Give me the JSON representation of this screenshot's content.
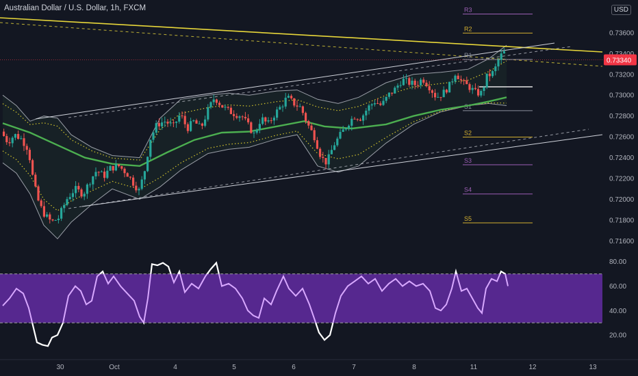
{
  "header": {
    "symbol_title": "Australian Dollar / U.S. Dollar, 1h, FXCM",
    "currency_badge": "USD"
  },
  "colors": {
    "background": "#131722",
    "up": "#26a69a",
    "down": "#ef5350",
    "ma": "#4caf50",
    "bands": "#b2b5be",
    "inner_bands": "#d4c52c",
    "trendline": "#e8d73a",
    "channel": "#d1d4dc",
    "rsi_line": "#d8a8ff",
    "rsi_fill": "#5e2a9b",
    "price_tag": "#f23645"
  },
  "chart_data": [
    {
      "type": "candlestick",
      "title": "",
      "ylim": [
        0.7155,
        0.7377
      ],
      "y_ticks": [
        "0.73600",
        "0.73400",
        "0.73200",
        "0.73000",
        "0.72800",
        "0.72600",
        "0.72400",
        "0.72200",
        "0.72000",
        "0.71800",
        "0.71600"
      ],
      "x_ticks": [
        "30",
        "Oct",
        "4",
        "5",
        "6",
        "7",
        "8",
        "11",
        "12",
        "13"
      ],
      "last_price": "0.73340",
      "grid": false,
      "pivot_levels": [
        {
          "label": "R3",
          "value": 0.7378
        },
        {
          "label": "R2",
          "value": 0.73597
        },
        {
          "label": "R1",
          "value": 0.73343
        },
        {
          "label": "S1",
          "value": 0.72851
        },
        {
          "label": "S2",
          "value": 0.72598
        },
        {
          "label": "S3",
          "value": 0.72332
        },
        {
          "label": "S4",
          "value": 0.72051
        },
        {
          "label": "S5",
          "value": 0.71773
        }
      ],
      "price_path": [
        {
          "x": 0,
          "y": 0.7265
        },
        {
          "x": 10,
          "y": 0.7255
        },
        {
          "x": 20,
          "y": 0.7262
        },
        {
          "x": 30,
          "y": 0.7258
        },
        {
          "x": 40,
          "y": 0.7248
        },
        {
          "x": 48,
          "y": 0.7215
        },
        {
          "x": 56,
          "y": 0.7195
        },
        {
          "x": 64,
          "y": 0.7185
        },
        {
          "x": 74,
          "y": 0.7178
        },
        {
          "x": 84,
          "y": 0.7182
        },
        {
          "x": 96,
          "y": 0.72
        },
        {
          "x": 108,
          "y": 0.721
        },
        {
          "x": 120,
          "y": 0.7205
        },
        {
          "x": 132,
          "y": 0.722
        },
        {
          "x": 140,
          "y": 0.7228
        },
        {
          "x": 150,
          "y": 0.7222
        },
        {
          "x": 160,
          "y": 0.723
        },
        {
          "x": 172,
          "y": 0.7232
        },
        {
          "x": 184,
          "y": 0.7225
        },
        {
          "x": 194,
          "y": 0.7215
        },
        {
          "x": 202,
          "y": 0.7208
        },
        {
          "x": 210,
          "y": 0.7228
        },
        {
          "x": 218,
          "y": 0.7258
        },
        {
          "x": 228,
          "y": 0.7272
        },
        {
          "x": 240,
          "y": 0.7275
        },
        {
          "x": 252,
          "y": 0.727
        },
        {
          "x": 262,
          "y": 0.7282
        },
        {
          "x": 272,
          "y": 0.7268
        },
        {
          "x": 282,
          "y": 0.7275
        },
        {
          "x": 292,
          "y": 0.7268
        },
        {
          "x": 302,
          "y": 0.7285
        },
        {
          "x": 312,
          "y": 0.7298
        },
        {
          "x": 322,
          "y": 0.729
        },
        {
          "x": 332,
          "y": 0.7285
        },
        {
          "x": 342,
          "y": 0.7282
        },
        {
          "x": 352,
          "y": 0.728
        },
        {
          "x": 360,
          "y": 0.7272
        },
        {
          "x": 370,
          "y": 0.7262
        },
        {
          "x": 380,
          "y": 0.7278
        },
        {
          "x": 390,
          "y": 0.7272
        },
        {
          "x": 400,
          "y": 0.7282
        },
        {
          "x": 410,
          "y": 0.729
        },
        {
          "x": 418,
          "y": 0.7298
        },
        {
          "x": 428,
          "y": 0.7292
        },
        {
          "x": 438,
          "y": 0.7288
        },
        {
          "x": 448,
          "y": 0.7272
        },
        {
          "x": 458,
          "y": 0.726
        },
        {
          "x": 468,
          "y": 0.724
        },
        {
          "x": 476,
          "y": 0.7235
        },
        {
          "x": 486,
          "y": 0.7252
        },
        {
          "x": 496,
          "y": 0.7262
        },
        {
          "x": 506,
          "y": 0.7272
        },
        {
          "x": 516,
          "y": 0.728
        },
        {
          "x": 526,
          "y": 0.7278
        },
        {
          "x": 536,
          "y": 0.7288
        },
        {
          "x": 546,
          "y": 0.7294
        },
        {
          "x": 556,
          "y": 0.729
        },
        {
          "x": 566,
          "y": 0.73
        },
        {
          "x": 576,
          "y": 0.7306
        },
        {
          "x": 586,
          "y": 0.7315
        },
        {
          "x": 596,
          "y": 0.7312
        },
        {
          "x": 606,
          "y": 0.731
        },
        {
          "x": 616,
          "y": 0.7316
        },
        {
          "x": 626,
          "y": 0.7308
        },
        {
          "x": 636,
          "y": 0.7298
        },
        {
          "x": 646,
          "y": 0.7302
        },
        {
          "x": 656,
          "y": 0.731
        },
        {
          "x": 664,
          "y": 0.7322
        },
        {
          "x": 674,
          "y": 0.7312
        },
        {
          "x": 684,
          "y": 0.7308
        },
        {
          "x": 694,
          "y": 0.7302
        },
        {
          "x": 702,
          "y": 0.7302
        },
        {
          "x": 710,
          "y": 0.7318
        },
        {
          "x": 720,
          "y": 0.7322
        },
        {
          "x": 728,
          "y": 0.7336
        },
        {
          "x": 734,
          "y": 0.7341
        }
      ],
      "ma_path": [
        {
          "x": 0,
          "y": 0.7273
        },
        {
          "x": 40,
          "y": 0.7264
        },
        {
          "x": 80,
          "y": 0.7252
        },
        {
          "x": 120,
          "y": 0.724
        },
        {
          "x": 160,
          "y": 0.7234
        },
        {
          "x": 200,
          "y": 0.7232
        },
        {
          "x": 240,
          "y": 0.7245
        },
        {
          "x": 280,
          "y": 0.7257
        },
        {
          "x": 320,
          "y": 0.7264
        },
        {
          "x": 360,
          "y": 0.7265
        },
        {
          "x": 400,
          "y": 0.727
        },
        {
          "x": 440,
          "y": 0.7275
        },
        {
          "x": 470,
          "y": 0.727
        },
        {
          "x": 510,
          "y": 0.7268
        },
        {
          "x": 560,
          "y": 0.7272
        },
        {
          "x": 600,
          "y": 0.728
        },
        {
          "x": 640,
          "y": 0.7286
        },
        {
          "x": 680,
          "y": 0.729
        },
        {
          "x": 710,
          "y": 0.7294
        },
        {
          "x": 736,
          "y": 0.7298
        }
      ],
      "upper_band": [
        {
          "x": 0,
          "y": 0.73
        },
        {
          "x": 20,
          "y": 0.729
        },
        {
          "x": 40,
          "y": 0.7275
        },
        {
          "x": 60,
          "y": 0.728
        },
        {
          "x": 80,
          "y": 0.7278
        },
        {
          "x": 100,
          "y": 0.7262
        },
        {
          "x": 130,
          "y": 0.725
        },
        {
          "x": 160,
          "y": 0.7242
        },
        {
          "x": 200,
          "y": 0.724
        },
        {
          "x": 230,
          "y": 0.7278
        },
        {
          "x": 260,
          "y": 0.7296
        },
        {
          "x": 300,
          "y": 0.73
        },
        {
          "x": 330,
          "y": 0.7302
        },
        {
          "x": 360,
          "y": 0.73
        },
        {
          "x": 400,
          "y": 0.7304
        },
        {
          "x": 430,
          "y": 0.7305
        },
        {
          "x": 460,
          "y": 0.7296
        },
        {
          "x": 490,
          "y": 0.7292
        },
        {
          "x": 520,
          "y": 0.7298
        },
        {
          "x": 560,
          "y": 0.7312
        },
        {
          "x": 600,
          "y": 0.732
        },
        {
          "x": 640,
          "y": 0.7322
        },
        {
          "x": 680,
          "y": 0.7325
        },
        {
          "x": 710,
          "y": 0.7335
        },
        {
          "x": 736,
          "y": 0.7348
        }
      ],
      "lower_band": [
        {
          "x": 0,
          "y": 0.7235
        },
        {
          "x": 20,
          "y": 0.7225
        },
        {
          "x": 40,
          "y": 0.7205
        },
        {
          "x": 60,
          "y": 0.7175
        },
        {
          "x": 80,
          "y": 0.7162
        },
        {
          "x": 100,
          "y": 0.7178
        },
        {
          "x": 130,
          "y": 0.7195
        },
        {
          "x": 160,
          "y": 0.721
        },
        {
          "x": 200,
          "y": 0.72
        },
        {
          "x": 230,
          "y": 0.7212
        },
        {
          "x": 260,
          "y": 0.7228
        },
        {
          "x": 300,
          "y": 0.7244
        },
        {
          "x": 330,
          "y": 0.7248
        },
        {
          "x": 360,
          "y": 0.725
        },
        {
          "x": 400,
          "y": 0.7258
        },
        {
          "x": 430,
          "y": 0.7262
        },
        {
          "x": 460,
          "y": 0.7232
        },
        {
          "x": 490,
          "y": 0.7226
        },
        {
          "x": 520,
          "y": 0.7232
        },
        {
          "x": 560,
          "y": 0.7254
        },
        {
          "x": 600,
          "y": 0.7272
        },
        {
          "x": 640,
          "y": 0.7284
        },
        {
          "x": 680,
          "y": 0.729
        },
        {
          "x": 710,
          "y": 0.7292
        },
        {
          "x": 736,
          "y": 0.729
        }
      ]
    },
    {
      "type": "line",
      "title": "",
      "ylim": [
        10,
        86
      ],
      "y_ticks": [
        "80.00",
        "60.00",
        "40.00",
        "20.00"
      ],
      "bands": [
        30,
        70
      ],
      "values": [
        {
          "x": 0,
          "y": 44
        },
        {
          "x": 10,
          "y": 50
        },
        {
          "x": 20,
          "y": 58
        },
        {
          "x": 30,
          "y": 54
        },
        {
          "x": 38,
          "y": 42
        },
        {
          "x": 44,
          "y": 28
        },
        {
          "x": 50,
          "y": 14
        },
        {
          "x": 58,
          "y": 12
        },
        {
          "x": 66,
          "y": 11
        },
        {
          "x": 72,
          "y": 18
        },
        {
          "x": 80,
          "y": 20
        },
        {
          "x": 88,
          "y": 30
        },
        {
          "x": 96,
          "y": 52
        },
        {
          "x": 106,
          "y": 60
        },
        {
          "x": 114,
          "y": 56
        },
        {
          "x": 122,
          "y": 45
        },
        {
          "x": 130,
          "y": 48
        },
        {
          "x": 138,
          "y": 68
        },
        {
          "x": 146,
          "y": 72
        },
        {
          "x": 154,
          "y": 62
        },
        {
          "x": 162,
          "y": 68
        },
        {
          "x": 172,
          "y": 60
        },
        {
          "x": 182,
          "y": 54
        },
        {
          "x": 192,
          "y": 48
        },
        {
          "x": 200,
          "y": 35
        },
        {
          "x": 206,
          "y": 30
        },
        {
          "x": 212,
          "y": 50
        },
        {
          "x": 218,
          "y": 78
        },
        {
          "x": 226,
          "y": 77
        },
        {
          "x": 234,
          "y": 79
        },
        {
          "x": 242,
          "y": 76
        },
        {
          "x": 250,
          "y": 63
        },
        {
          "x": 258,
          "y": 72
        },
        {
          "x": 266,
          "y": 55
        },
        {
          "x": 276,
          "y": 62
        },
        {
          "x": 286,
          "y": 58
        },
        {
          "x": 296,
          "y": 68
        },
        {
          "x": 304,
          "y": 74
        },
        {
          "x": 312,
          "y": 79
        },
        {
          "x": 320,
          "y": 60
        },
        {
          "x": 330,
          "y": 62
        },
        {
          "x": 340,
          "y": 58
        },
        {
          "x": 350,
          "y": 50
        },
        {
          "x": 358,
          "y": 40
        },
        {
          "x": 366,
          "y": 36
        },
        {
          "x": 374,
          "y": 34
        },
        {
          "x": 382,
          "y": 50
        },
        {
          "x": 392,
          "y": 45
        },
        {
          "x": 400,
          "y": 56
        },
        {
          "x": 410,
          "y": 68
        },
        {
          "x": 418,
          "y": 58
        },
        {
          "x": 428,
          "y": 52
        },
        {
          "x": 438,
          "y": 58
        },
        {
          "x": 448,
          "y": 45
        },
        {
          "x": 456,
          "y": 32
        },
        {
          "x": 462,
          "y": 22
        },
        {
          "x": 470,
          "y": 16
        },
        {
          "x": 478,
          "y": 20
        },
        {
          "x": 486,
          "y": 38
        },
        {
          "x": 494,
          "y": 52
        },
        {
          "x": 504,
          "y": 60
        },
        {
          "x": 514,
          "y": 64
        },
        {
          "x": 524,
          "y": 68
        },
        {
          "x": 534,
          "y": 62
        },
        {
          "x": 544,
          "y": 66
        },
        {
          "x": 554,
          "y": 56
        },
        {
          "x": 564,
          "y": 62
        },
        {
          "x": 574,
          "y": 66
        },
        {
          "x": 584,
          "y": 60
        },
        {
          "x": 594,
          "y": 64
        },
        {
          "x": 604,
          "y": 60
        },
        {
          "x": 614,
          "y": 62
        },
        {
          "x": 624,
          "y": 56
        },
        {
          "x": 632,
          "y": 42
        },
        {
          "x": 640,
          "y": 40
        },
        {
          "x": 648,
          "y": 45
        },
        {
          "x": 656,
          "y": 58
        },
        {
          "x": 662,
          "y": 72
        },
        {
          "x": 670,
          "y": 56
        },
        {
          "x": 678,
          "y": 58
        },
        {
          "x": 686,
          "y": 50
        },
        {
          "x": 694,
          "y": 42
        },
        {
          "x": 700,
          "y": 38
        },
        {
          "x": 706,
          "y": 58
        },
        {
          "x": 714,
          "y": 66
        },
        {
          "x": 722,
          "y": 64
        },
        {
          "x": 728,
          "y": 72
        },
        {
          "x": 734,
          "y": 70
        },
        {
          "x": 738,
          "y": 60
        }
      ]
    }
  ]
}
